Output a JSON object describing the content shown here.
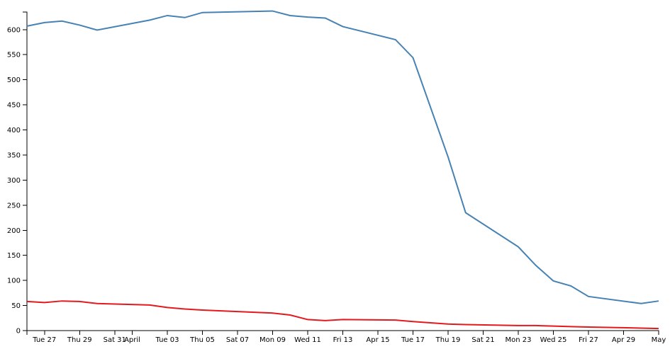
{
  "chart_data": {
    "type": "line",
    "x": [
      "Mar 26",
      "Mar 27",
      "Mar 28",
      "Mar 29",
      "Mar 30",
      "Apr 2",
      "Apr 3",
      "Apr 4",
      "Apr 5",
      "Apr 9",
      "Apr 10",
      "Apr 11",
      "Apr 12",
      "Apr 13",
      "Apr 16",
      "Apr 17",
      "Apr 19",
      "Apr 20",
      "Apr 23",
      "Apr 24",
      "Apr 25",
      "Apr 26",
      "Apr 27",
      "Apr 30",
      "May 1"
    ],
    "series": [
      {
        "color": "#4682b4",
        "values": [
          607,
          614,
          617,
          609,
          599,
          619,
          628,
          624,
          634,
          637,
          628,
          625,
          623,
          606,
          580,
          544,
          346,
          235,
          167,
          130,
          99,
          89,
          68,
          54,
          59
        ]
      },
      {
        "color": "#e31a1c",
        "values": [
          58,
          56,
          59,
          58,
          54,
          51,
          46,
          43,
          41,
          35,
          31,
          22,
          20,
          22,
          21,
          18,
          13,
          12,
          10,
          10,
          9,
          8,
          7,
          5,
          4
        ]
      }
    ],
    "xlim": [
      "Mar 26",
      "May 1"
    ],
    "xticks": [
      {
        "value": "Mar 27",
        "label": "Tue 27"
      },
      {
        "value": "Mar 29",
        "label": "Thu 29"
      },
      {
        "value": "Mar 31",
        "label": "Sat 31"
      },
      {
        "value": "Apr 1",
        "label": "April"
      },
      {
        "value": "Apr 3",
        "label": "Tue 03"
      },
      {
        "value": "Apr 5",
        "label": "Thu 05"
      },
      {
        "value": "Apr 7",
        "label": "Sat 07"
      },
      {
        "value": "Apr 9",
        "label": "Mon 09"
      },
      {
        "value": "Apr 11",
        "label": "Wed 11"
      },
      {
        "value": "Apr 13",
        "label": "Fri 13"
      },
      "Apr 15",
      {
        "value": "Apr 17",
        "label": "Tue 17"
      },
      {
        "value": "Apr 19",
        "label": "Thu 19"
      },
      {
        "value": "Apr 21",
        "label": "Sat 21"
      },
      {
        "value": "Apr 23",
        "label": "Mon 23"
      },
      {
        "value": "Apr 25",
        "label": "Wed 25"
      },
      {
        "value": "Apr 27",
        "label": "Fri 27"
      },
      "Apr 29",
      {
        "value": "May 1",
        "label": "May"
      }
    ],
    "ylim": [
      0,
      635
    ],
    "yticks": [
      0,
      50,
      100,
      150,
      200,
      250,
      300,
      350,
      400,
      450,
      500,
      550,
      600
    ]
  }
}
